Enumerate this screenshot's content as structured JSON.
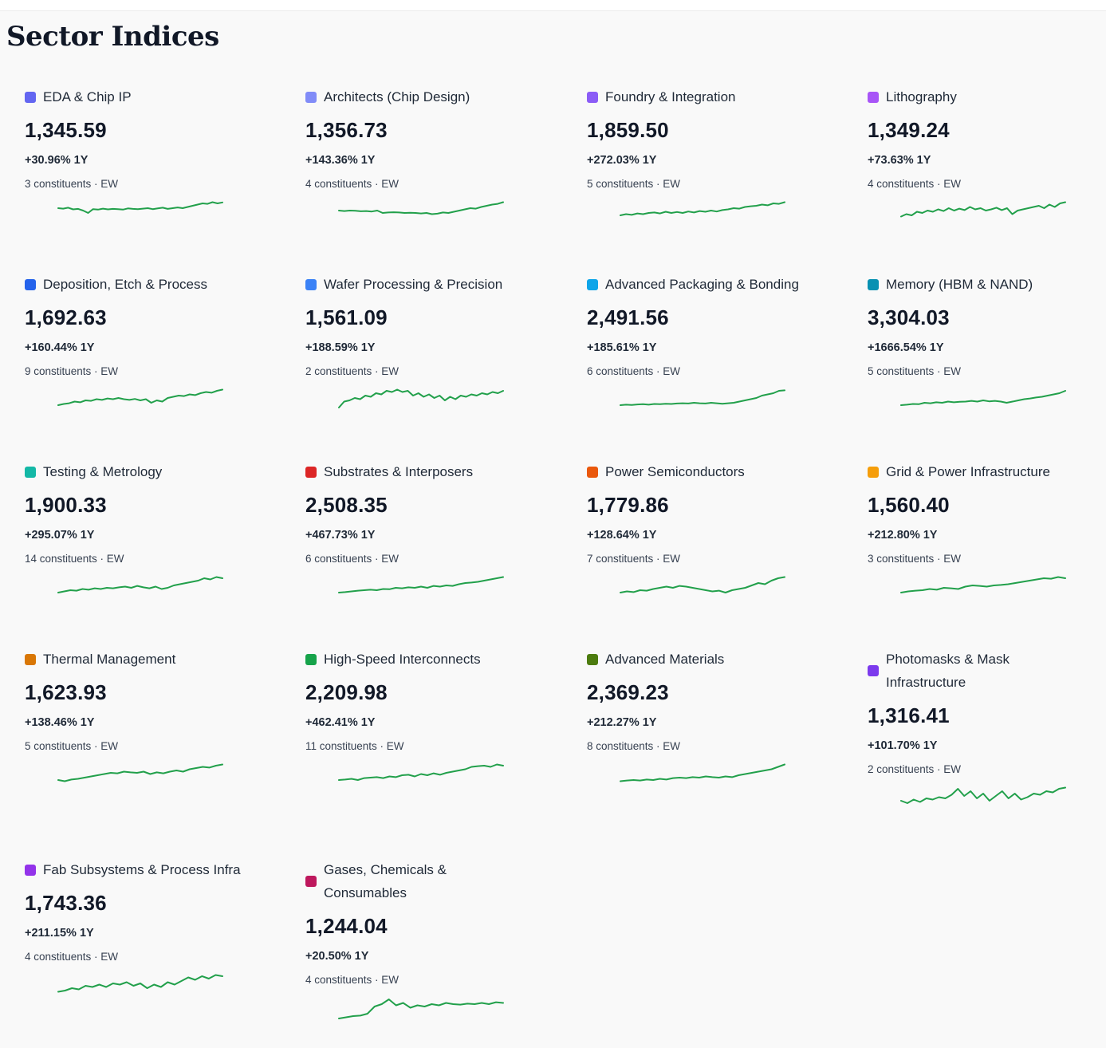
{
  "header": {
    "title": "Sector Indices"
  },
  "spark_color": "#22a04b",
  "cards": [
    {
      "name": "EDA & Chip IP",
      "color": "#6366f1",
      "value": "1,345.59",
      "change": "+30.96% 1Y",
      "meta": "3 constituents · EW",
      "spark": [
        0.3,
        0.32,
        0.28,
        0.35,
        0.33,
        0.4,
        0.5,
        0.34,
        0.36,
        0.32,
        0.35,
        0.33,
        0.34,
        0.36,
        0.31,
        0.33,
        0.34,
        0.32,
        0.3,
        0.34,
        0.31,
        0.28,
        0.33,
        0.3,
        0.27,
        0.3,
        0.25,
        0.2,
        0.15,
        0.1,
        0.12,
        0.05,
        0.1,
        0.06
      ]
    },
    {
      "name": "Architects (Chip Design)",
      "color": "#818cf8",
      "value": "1,356.73",
      "change": "+143.36% 1Y",
      "meta": "4 constituents · EW",
      "spark": [
        0.4,
        0.42,
        0.4,
        0.41,
        0.43,
        0.42,
        0.44,
        0.4,
        0.5,
        0.48,
        0.47,
        0.48,
        0.5,
        0.49,
        0.5,
        0.52,
        0.5,
        0.55,
        0.53,
        0.48,
        0.5,
        0.45,
        0.4,
        0.35,
        0.3,
        0.32,
        0.25,
        0.2,
        0.15,
        0.12,
        0.05
      ]
    },
    {
      "name": "Foundry & Integration",
      "color": "#8b5cf6",
      "value": "1,859.50",
      "change": "+272.03% 1Y",
      "meta": "5 constituents · EW",
      "spark": [
        0.6,
        0.55,
        0.58,
        0.52,
        0.55,
        0.5,
        0.48,
        0.52,
        0.45,
        0.5,
        0.46,
        0.5,
        0.44,
        0.48,
        0.42,
        0.45,
        0.4,
        0.44,
        0.38,
        0.35,
        0.3,
        0.32,
        0.25,
        0.22,
        0.2,
        0.15,
        0.18,
        0.1,
        0.12,
        0.05
      ]
    },
    {
      "name": "Lithography",
      "color": "#a855f7",
      "value": "1,349.24",
      "change": "+73.63% 1Y",
      "meta": "4 constituents · EW",
      "spark": [
        0.65,
        0.55,
        0.6,
        0.45,
        0.5,
        0.4,
        0.45,
        0.35,
        0.42,
        0.3,
        0.4,
        0.32,
        0.38,
        0.25,
        0.35,
        0.3,
        0.4,
        0.35,
        0.28,
        0.38,
        0.3,
        0.55,
        0.4,
        0.35,
        0.3,
        0.25,
        0.2,
        0.3,
        0.15,
        0.25,
        0.1,
        0.05
      ]
    },
    {
      "name": "Deposition, Etch & Process",
      "color": "#2563eb",
      "value": "1,692.63",
      "change": "+160.44% 1Y",
      "meta": "9 constituents · EW",
      "spark": [
        0.7,
        0.65,
        0.62,
        0.55,
        0.58,
        0.5,
        0.52,
        0.45,
        0.48,
        0.42,
        0.45,
        0.4,
        0.45,
        0.48,
        0.44,
        0.5,
        0.45,
        0.6,
        0.5,
        0.55,
        0.4,
        0.35,
        0.3,
        0.32,
        0.25,
        0.28,
        0.2,
        0.15,
        0.18,
        0.1,
        0.05
      ]
    },
    {
      "name": "Wafer Processing & Precision",
      "color": "#3b82f6",
      "value": "1,561.09",
      "change": "+188.59% 1Y",
      "meta": "2 constituents · EW",
      "spark": [
        0.8,
        0.55,
        0.5,
        0.4,
        0.45,
        0.3,
        0.35,
        0.2,
        0.25,
        0.1,
        0.15,
        0.05,
        0.15,
        0.1,
        0.3,
        0.2,
        0.35,
        0.25,
        0.4,
        0.3,
        0.5,
        0.35,
        0.45,
        0.3,
        0.35,
        0.25,
        0.3,
        0.2,
        0.25,
        0.15,
        0.2,
        0.1
      ]
    },
    {
      "name": "Advanced Packaging & Bonding",
      "color": "#0ea5e9",
      "value": "2,491.56",
      "change": "+185.61% 1Y",
      "meta": "6 constituents · EW",
      "spark": [
        0.7,
        0.68,
        0.69,
        0.67,
        0.66,
        0.68,
        0.65,
        0.66,
        0.64,
        0.65,
        0.63,
        0.62,
        0.63,
        0.6,
        0.62,
        0.63,
        0.6,
        0.62,
        0.64,
        0.62,
        0.6,
        0.55,
        0.5,
        0.45,
        0.4,
        0.3,
        0.25,
        0.2,
        0.1,
        0.08
      ]
    },
    {
      "name": "Memory (HBM & NAND)",
      "color": "#0891b2",
      "value": "3,304.03",
      "change": "+1666.54% 1Y",
      "meta": "5 constituents · EW",
      "spark": [
        0.7,
        0.68,
        0.65,
        0.66,
        0.6,
        0.62,
        0.58,
        0.6,
        0.55,
        0.58,
        0.56,
        0.55,
        0.52,
        0.55,
        0.5,
        0.54,
        0.52,
        0.55,
        0.6,
        0.55,
        0.5,
        0.45,
        0.42,
        0.38,
        0.35,
        0.3,
        0.25,
        0.2,
        0.1
      ]
    },
    {
      "name": "Testing & Metrology",
      "color": "#14b8a6",
      "value": "1,900.33",
      "change": "+295.07% 1Y",
      "meta": "14 constituents · EW",
      "spark": [
        0.7,
        0.65,
        0.6,
        0.62,
        0.55,
        0.58,
        0.52,
        0.55,
        0.5,
        0.52,
        0.48,
        0.45,
        0.5,
        0.42,
        0.48,
        0.52,
        0.45,
        0.55,
        0.5,
        0.4,
        0.35,
        0.3,
        0.25,
        0.2,
        0.1,
        0.15,
        0.05,
        0.1
      ]
    },
    {
      "name": "Substrates & Interposers",
      "color": "#dc2626",
      "value": "2,508.35",
      "change": "+467.73% 1Y",
      "meta": "6 constituents · EW",
      "spark": [
        0.7,
        0.68,
        0.65,
        0.62,
        0.6,
        0.58,
        0.6,
        0.55,
        0.56,
        0.5,
        0.52,
        0.48,
        0.5,
        0.45,
        0.5,
        0.42,
        0.45,
        0.4,
        0.42,
        0.35,
        0.3,
        0.28,
        0.25,
        0.2,
        0.15,
        0.1,
        0.05
      ]
    },
    {
      "name": "Power Semiconductors",
      "color": "#ea580c",
      "value": "1,779.86",
      "change": "+128.64% 1Y",
      "meta": "7 constituents · EW",
      "spark": [
        0.7,
        0.65,
        0.68,
        0.6,
        0.62,
        0.55,
        0.5,
        0.45,
        0.5,
        0.42,
        0.45,
        0.5,
        0.55,
        0.6,
        0.65,
        0.62,
        0.7,
        0.6,
        0.55,
        0.5,
        0.4,
        0.3,
        0.35,
        0.2,
        0.1,
        0.05
      ]
    },
    {
      "name": "Grid & Power Infrastructure",
      "color": "#f59e0b",
      "value": "1,560.40",
      "change": "+212.80% 1Y",
      "meta": "3 constituents · EW",
      "spark": [
        0.7,
        0.65,
        0.62,
        0.6,
        0.55,
        0.58,
        0.5,
        0.52,
        0.55,
        0.45,
        0.4,
        0.42,
        0.45,
        0.4,
        0.38,
        0.35,
        0.3,
        0.25,
        0.2,
        0.15,
        0.1,
        0.12,
        0.05,
        0.1
      ]
    },
    {
      "name": "Thermal Management",
      "color": "#d97706",
      "value": "1,623.93",
      "change": "+138.46% 1Y",
      "meta": "5 constituents · EW",
      "spark": [
        0.7,
        0.75,
        0.68,
        0.65,
        0.6,
        0.55,
        0.5,
        0.45,
        0.4,
        0.42,
        0.35,
        0.38,
        0.4,
        0.35,
        0.45,
        0.38,
        0.42,
        0.35,
        0.3,
        0.35,
        0.25,
        0.2,
        0.15,
        0.18,
        0.1,
        0.05
      ]
    },
    {
      "name": "High-Speed Interconnects",
      "color": "#16a34a",
      "value": "2,209.98",
      "change": "+462.41% 1Y",
      "meta": "11 constituents · EW",
      "spark": [
        0.7,
        0.68,
        0.65,
        0.7,
        0.62,
        0.6,
        0.58,
        0.62,
        0.55,
        0.58,
        0.5,
        0.48,
        0.55,
        0.45,
        0.5,
        0.42,
        0.48,
        0.4,
        0.35,
        0.3,
        0.25,
        0.15,
        0.12,
        0.1,
        0.15,
        0.05,
        0.1
      ]
    },
    {
      "name": "Advanced Materials",
      "color": "#4d7c0f",
      "value": "2,369.23",
      "change": "+212.27% 1Y",
      "meta": "8 constituents · EW",
      "spark": [
        0.75,
        0.72,
        0.7,
        0.72,
        0.68,
        0.7,
        0.65,
        0.68,
        0.62,
        0.6,
        0.62,
        0.58,
        0.6,
        0.55,
        0.58,
        0.6,
        0.55,
        0.58,
        0.5,
        0.45,
        0.4,
        0.35,
        0.3,
        0.25,
        0.15,
        0.05
      ]
    },
    {
      "name": "Photomasks & Mask Infrastructure",
      "color": "#7c3aed",
      "value": "1,316.41",
      "change": "+101.70% 1Y",
      "meta": "2 constituents · EW",
      "spark": [
        0.6,
        0.7,
        0.55,
        0.65,
        0.5,
        0.55,
        0.45,
        0.5,
        0.35,
        0.1,
        0.4,
        0.2,
        0.5,
        0.3,
        0.6,
        0.4,
        0.2,
        0.5,
        0.3,
        0.55,
        0.45,
        0.3,
        0.35,
        0.2,
        0.25,
        0.1,
        0.05
      ]
    },
    {
      "name": "Fab Subsystems & Process Infra",
      "color": "#9333ea",
      "value": "1,743.36",
      "change": "+211.15% 1Y",
      "meta": "4 constituents · EW",
      "spark": [
        0.75,
        0.7,
        0.6,
        0.65,
        0.5,
        0.55,
        0.45,
        0.55,
        0.4,
        0.45,
        0.35,
        0.5,
        0.4,
        0.6,
        0.45,
        0.55,
        0.35,
        0.45,
        0.3,
        0.15,
        0.25,
        0.1,
        0.2,
        0.05,
        0.1
      ]
    },
    {
      "name": "Gases, Chemicals & Consumables",
      "color": "#be185d",
      "value": "1,244.04",
      "change": "+20.50% 1Y",
      "meta": "4 constituents · EW",
      "spark": [
        0.9,
        0.85,
        0.8,
        0.78,
        0.7,
        0.4,
        0.3,
        0.1,
        0.35,
        0.25,
        0.45,
        0.35,
        0.4,
        0.3,
        0.35,
        0.25,
        0.3,
        0.32,
        0.28,
        0.3,
        0.25,
        0.3,
        0.22,
        0.25
      ]
    }
  ]
}
